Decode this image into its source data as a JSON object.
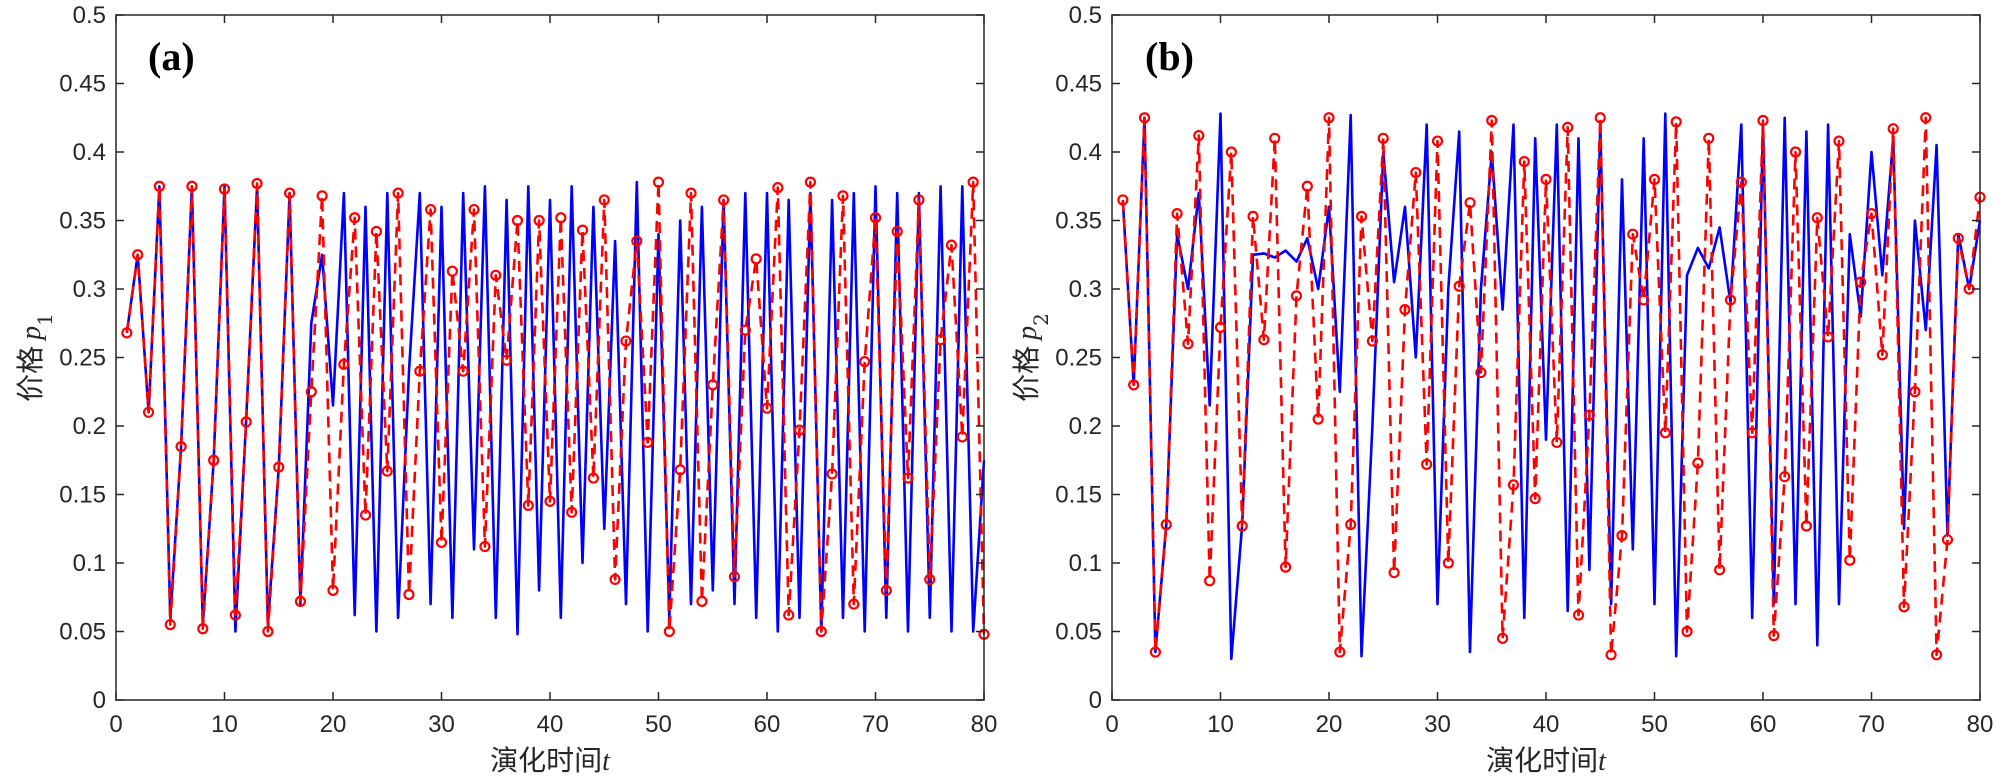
{
  "chart_data": [
    {
      "type": "line",
      "panel_label": "(a)",
      "xlabel_text": "演化时间",
      "xlabel_var": "t",
      "ylabel_text": "价格",
      "ylabel_var": "p",
      "ylabel_sub": "1",
      "xlim": [
        0,
        80
      ],
      "ylim": [
        0,
        0.5
      ],
      "xticks": [
        0,
        10,
        20,
        30,
        40,
        50,
        60,
        70,
        80
      ],
      "yticks": [
        0,
        0.05,
        0.1,
        0.15,
        0.2,
        0.25,
        0.3,
        0.35,
        0.4,
        0.45,
        0.5
      ],
      "ytick_labels": [
        "0",
        "0.05",
        "0.1",
        "0.15",
        "0.2",
        "0.25",
        "0.3",
        "0.35",
        "0.4",
        "0.45",
        "0.5"
      ],
      "series": [
        {
          "name": "solid",
          "color": "#0000FF",
          "style": "solid",
          "x": [
            1,
            2,
            3,
            4,
            5,
            6,
            7,
            8,
            9,
            10,
            11,
            12,
            13,
            14,
            15,
            16,
            17,
            18,
            19,
            20,
            21,
            22,
            23,
            24,
            25,
            26,
            27,
            28,
            29,
            30,
            31,
            32,
            33,
            34,
            35,
            36,
            37,
            38,
            39,
            40,
            41,
            42,
            43,
            44,
            45,
            46,
            47,
            48,
            49,
            50,
            51,
            52,
            53,
            54,
            55,
            56,
            57,
            58,
            59,
            60,
            61,
            62,
            63,
            64,
            65,
            66,
            67,
            68,
            69,
            70,
            71,
            72,
            73,
            74,
            75,
            76,
            77,
            78,
            79,
            80
          ],
          "y": [
            0.268,
            0.325,
            0.21,
            0.375,
            0.06,
            0.185,
            0.375,
            0.055,
            0.175,
            0.375,
            0.05,
            0.205,
            0.375,
            0.055,
            0.17,
            0.37,
            0.07,
            0.275,
            0.325,
            0.215,
            0.37,
            0.062,
            0.36,
            0.05,
            0.37,
            0.06,
            0.24,
            0.37,
            0.07,
            0.36,
            0.06,
            0.37,
            0.11,
            0.375,
            0.06,
            0.365,
            0.048,
            0.375,
            0.08,
            0.365,
            0.06,
            0.375,
            0.1,
            0.36,
            0.125,
            0.335,
            0.07,
            0.378,
            0.05,
            0.34,
            0.06,
            0.35,
            0.07,
            0.36,
            0.08,
            0.365,
            0.07,
            0.37,
            0.06,
            0.37,
            0.05,
            0.365,
            0.06,
            0.37,
            0.05,
            0.365,
            0.06,
            0.37,
            0.05,
            0.375,
            0.06,
            0.37,
            0.05,
            0.37,
            0.06,
            0.375,
            0.05,
            0.375,
            0.05,
            0.175
          ]
        },
        {
          "name": "dashed-markers",
          "color": "#FF0000",
          "style": "dashed",
          "marker": "o",
          "x": [
            1,
            2,
            3,
            4,
            5,
            6,
            7,
            8,
            9,
            10,
            11,
            12,
            13,
            14,
            15,
            16,
            17,
            18,
            19,
            20,
            21,
            22,
            23,
            24,
            25,
            26,
            27,
            28,
            29,
            30,
            31,
            32,
            33,
            34,
            35,
            36,
            37,
            38,
            39,
            40,
            41,
            42,
            43,
            44,
            45,
            46,
            47,
            48,
            49,
            50,
            51,
            52,
            53,
            54,
            55,
            56,
            57,
            58,
            59,
            60,
            61,
            62,
            63,
            64,
            65,
            66,
            67,
            68,
            69,
            70,
            71,
            72,
            73,
            74,
            75,
            76,
            77,
            78,
            79,
            80
          ],
          "y": [
            0.268,
            0.325,
            0.21,
            0.375,
            0.055,
            0.185,
            0.375,
            0.052,
            0.175,
            0.373,
            0.062,
            0.203,
            0.377,
            0.05,
            0.17,
            0.37,
            0.072,
            0.225,
            0.368,
            0.08,
            0.245,
            0.352,
            0.135,
            0.342,
            0.167,
            0.37,
            0.077,
            0.24,
            0.358,
            0.115,
            0.313,
            0.24,
            0.358,
            0.112,
            0.31,
            0.248,
            0.35,
            0.142,
            0.35,
            0.145,
            0.352,
            0.137,
            0.343,
            0.162,
            0.365,
            0.088,
            0.262,
            0.335,
            0.188,
            0.378,
            0.05,
            0.168,
            0.37,
            0.072,
            0.23,
            0.365,
            0.09,
            0.27,
            0.322,
            0.213,
            0.374,
            0.062,
            0.197,
            0.378,
            0.05,
            0.165,
            0.368,
            0.07,
            0.247,
            0.352,
            0.08,
            0.342,
            0.162,
            0.365,
            0.088,
            0.263,
            0.332,
            0.192,
            0.378,
            0.048
          ]
        }
      ]
    },
    {
      "type": "line",
      "panel_label": "(b)",
      "xlabel_text": "演化时间",
      "xlabel_var": "t",
      "ylabel_text": "价格",
      "ylabel_var": "p",
      "ylabel_sub": "2",
      "xlim": [
        0,
        80
      ],
      "ylim": [
        0,
        0.5
      ],
      "xticks": [
        0,
        10,
        20,
        30,
        40,
        50,
        60,
        70,
        80
      ],
      "yticks": [
        0,
        0.05,
        0.1,
        0.15,
        0.2,
        0.25,
        0.3,
        0.35,
        0.4,
        0.45,
        0.5
      ],
      "ytick_labels": [
        "0",
        "0.05",
        "0.1",
        "0.15",
        "0.2",
        "0.25",
        "0.3",
        "0.35",
        "0.4",
        "0.45",
        "0.5"
      ],
      "series": [
        {
          "name": "solid",
          "color": "#0000FF",
          "style": "solid",
          "x": [
            1,
            2,
            3,
            4,
            5,
            6,
            7,
            8,
            9,
            10,
            11,
            12,
            13,
            14,
            15,
            16,
            17,
            18,
            19,
            20,
            21,
            22,
            23,
            24,
            25,
            26,
            27,
            28,
            29,
            30,
            31,
            32,
            33,
            34,
            35,
            36,
            37,
            38,
            39,
            40,
            41,
            42,
            43,
            44,
            45,
            46,
            47,
            48,
            49,
            50,
            51,
            52,
            53,
            54,
            55,
            56,
            57,
            58,
            59,
            60,
            61,
            62,
            63,
            64,
            65,
            66,
            67,
            68,
            69,
            70,
            71,
            72,
            73,
            74,
            75,
            76,
            77,
            78,
            79,
            80
          ],
          "y": [
            0.365,
            0.23,
            0.425,
            0.035,
            0.128,
            0.34,
            0.3,
            0.37,
            0.215,
            0.428,
            0.03,
            0.128,
            0.325,
            0.326,
            0.323,
            0.328,
            0.32,
            0.337,
            0.3,
            0.36,
            0.225,
            0.427,
            0.032,
            0.2,
            0.4,
            0.305,
            0.36,
            0.25,
            0.42,
            0.07,
            0.3,
            0.415,
            0.035,
            0.3,
            0.4,
            0.285,
            0.42,
            0.06,
            0.41,
            0.19,
            0.42,
            0.065,
            0.41,
            0.095,
            0.42,
            0.07,
            0.38,
            0.11,
            0.41,
            0.07,
            0.428,
            0.032,
            0.31,
            0.33,
            0.315,
            0.345,
            0.29,
            0.42,
            0.06,
            0.42,
            0.07,
            0.425,
            0.07,
            0.415,
            0.04,
            0.42,
            0.07,
            0.34,
            0.28,
            0.4,
            0.31,
            0.41,
            0.125,
            0.35,
            0.27,
            0.405,
            0.12,
            0.34,
            0.3,
            0.35
          ]
        },
        {
          "name": "dashed-markers",
          "color": "#FF0000",
          "style": "dashed",
          "marker": "o",
          "x": [
            1,
            2,
            3,
            4,
            5,
            6,
            7,
            8,
            9,
            10,
            11,
            12,
            13,
            14,
            15,
            16,
            17,
            18,
            19,
            20,
            21,
            22,
            23,
            24,
            25,
            26,
            27,
            28,
            29,
            30,
            31,
            32,
            33,
            34,
            35,
            36,
            37,
            38,
            39,
            40,
            41,
            42,
            43,
            44,
            45,
            46,
            47,
            48,
            49,
            50,
            51,
            52,
            53,
            54,
            55,
            56,
            57,
            58,
            59,
            60,
            61,
            62,
            63,
            64,
            65,
            66,
            67,
            68,
            69,
            70,
            71,
            72,
            73,
            74,
            75,
            76,
            77,
            78,
            79,
            80
          ],
          "y": [
            0.365,
            0.23,
            0.425,
            0.035,
            0.128,
            0.355,
            0.26,
            0.412,
            0.087,
            0.272,
            0.4,
            0.127,
            0.353,
            0.263,
            0.41,
            0.097,
            0.295,
            0.375,
            0.205,
            0.425,
            0.035,
            0.128,
            0.353,
            0.262,
            0.41,
            0.093,
            0.285,
            0.385,
            0.172,
            0.408,
            0.1,
            0.302,
            0.363,
            0.239,
            0.423,
            0.045,
            0.157,
            0.393,
            0.147,
            0.38,
            0.188,
            0.418,
            0.062,
            0.208,
            0.425,
            0.033,
            0.12,
            0.34,
            0.292,
            0.38,
            0.195,
            0.422,
            0.05,
            0.173,
            0.41,
            0.095,
            0.292,
            0.378,
            0.195,
            0.423,
            0.047,
            0.163,
            0.4,
            0.127,
            0.352,
            0.265,
            0.408,
            0.102,
            0.305,
            0.355,
            0.252,
            0.417,
            0.068,
            0.225,
            0.425,
            0.033,
            0.117,
            0.337,
            0.3,
            0.367
          ]
        }
      ]
    }
  ]
}
